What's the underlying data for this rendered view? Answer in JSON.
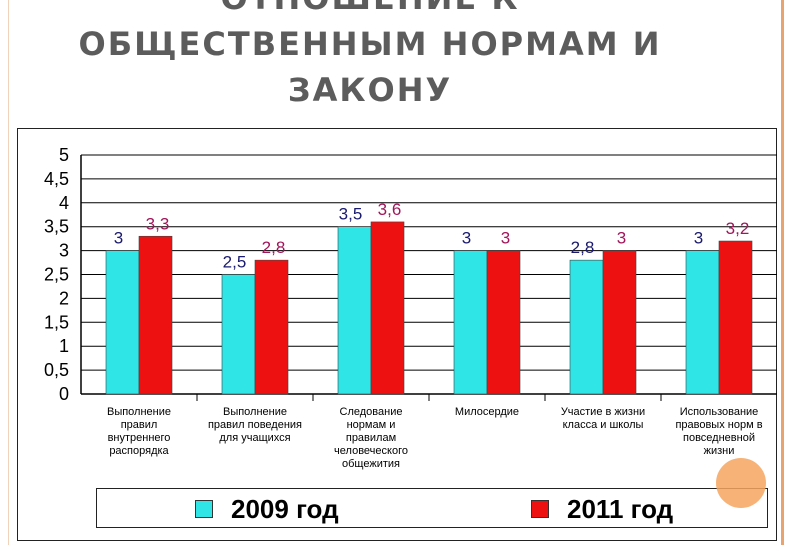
{
  "title_lines": [
    "ОТНОШЕНИЕ К",
    "ОБЩЕСТВЕННЫМ НОРМАМ И",
    "ЗАКОНУ"
  ],
  "colors": {
    "series_2009": "#2fe5e5",
    "series_2011": "#ee1111",
    "label_2009": "#1a1a6e",
    "label_2011": "#a0165a",
    "accent_dot": "#f6a55f"
  },
  "chart_data": {
    "type": "bar",
    "categories": [
      [
        "Выполнение",
        "правил",
        "внутреннего",
        "распорядка"
      ],
      [
        "Выполнение",
        "правил поведения",
        "для учащихся"
      ],
      [
        "Следование",
        "нормам и",
        "правилам",
        "человеческого",
        "общежития"
      ],
      [
        "Милосердие"
      ],
      [
        "Участие в жизни",
        "класса и школы"
      ],
      [
        "Использование",
        "правовых норм в",
        "повседневной",
        "жизни"
      ]
    ],
    "series": [
      {
        "name": "2009 год",
        "values": [
          3,
          2.5,
          3.5,
          3,
          2.8,
          3
        ],
        "labels": [
          "3",
          "2,5",
          "3,5",
          "3",
          "2,8",
          "3"
        ]
      },
      {
        "name": "2011 год",
        "values": [
          3.3,
          2.8,
          3.6,
          3,
          3,
          3.2
        ],
        "labels": [
          "3,3",
          "2,8",
          "3,6",
          "3",
          "3",
          "3,2"
        ]
      }
    ],
    "ylim": [
      0,
      5
    ],
    "yticks": [
      "0",
      "0,5",
      "1",
      "1,5",
      "2",
      "2,5",
      "3",
      "3,5",
      "4",
      "4,5",
      "5"
    ],
    "grid": true,
    "legend_position": "bottom"
  }
}
